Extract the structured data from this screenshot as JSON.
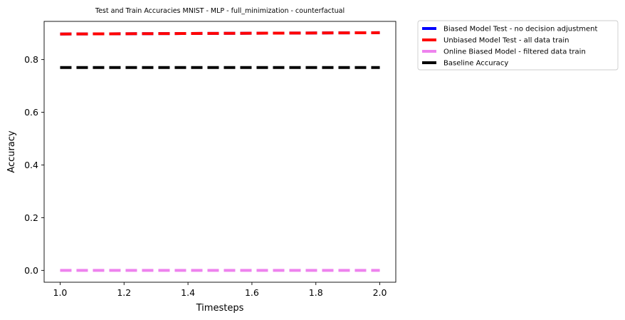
{
  "chart_data": {
    "type": "line",
    "title": "Test and Train Accuracies MNIST - MLP - full_minimization - counterfactual",
    "xlabel": "Timesteps",
    "ylabel": "Accuracy",
    "xlim": [
      0.95,
      2.05
    ],
    "ylim": [
      -0.045,
      0.945
    ],
    "x_ticks": [
      1.0,
      1.2,
      1.4,
      1.6,
      1.8,
      2.0
    ],
    "x_tick_labels": [
      "1.0",
      "1.2",
      "1.4",
      "1.6",
      "1.8",
      "2.0"
    ],
    "y_ticks": [
      0.0,
      0.2,
      0.4,
      0.6,
      0.8
    ],
    "y_tick_labels": [
      "0.0",
      "0.2",
      "0.4",
      "0.6",
      "0.8"
    ],
    "grid": false,
    "legend_placement": "outside-upper-right",
    "series": [
      {
        "name": "Biased Model Test - no decision adjustment",
        "color": "#0000ff",
        "x": [
          1.0,
          2.0
        ],
        "values": [
          0.897,
          0.902
        ]
      },
      {
        "name": "Unbiased Model Test - all data train",
        "color": "#ff0000",
        "x": [
          1.0,
          2.0
        ],
        "values": [
          0.897,
          0.902
        ]
      },
      {
        "name": "Online Biased Model - filtered data train",
        "color": "#ee82ee",
        "x": [
          1.0,
          2.0
        ],
        "values": [
          0.0,
          0.0
        ]
      },
      {
        "name": "Baseline Accuracy",
        "color": "#000000",
        "x": [
          1.0,
          2.0
        ],
        "values": [
          0.77,
          0.77
        ]
      }
    ]
  }
}
